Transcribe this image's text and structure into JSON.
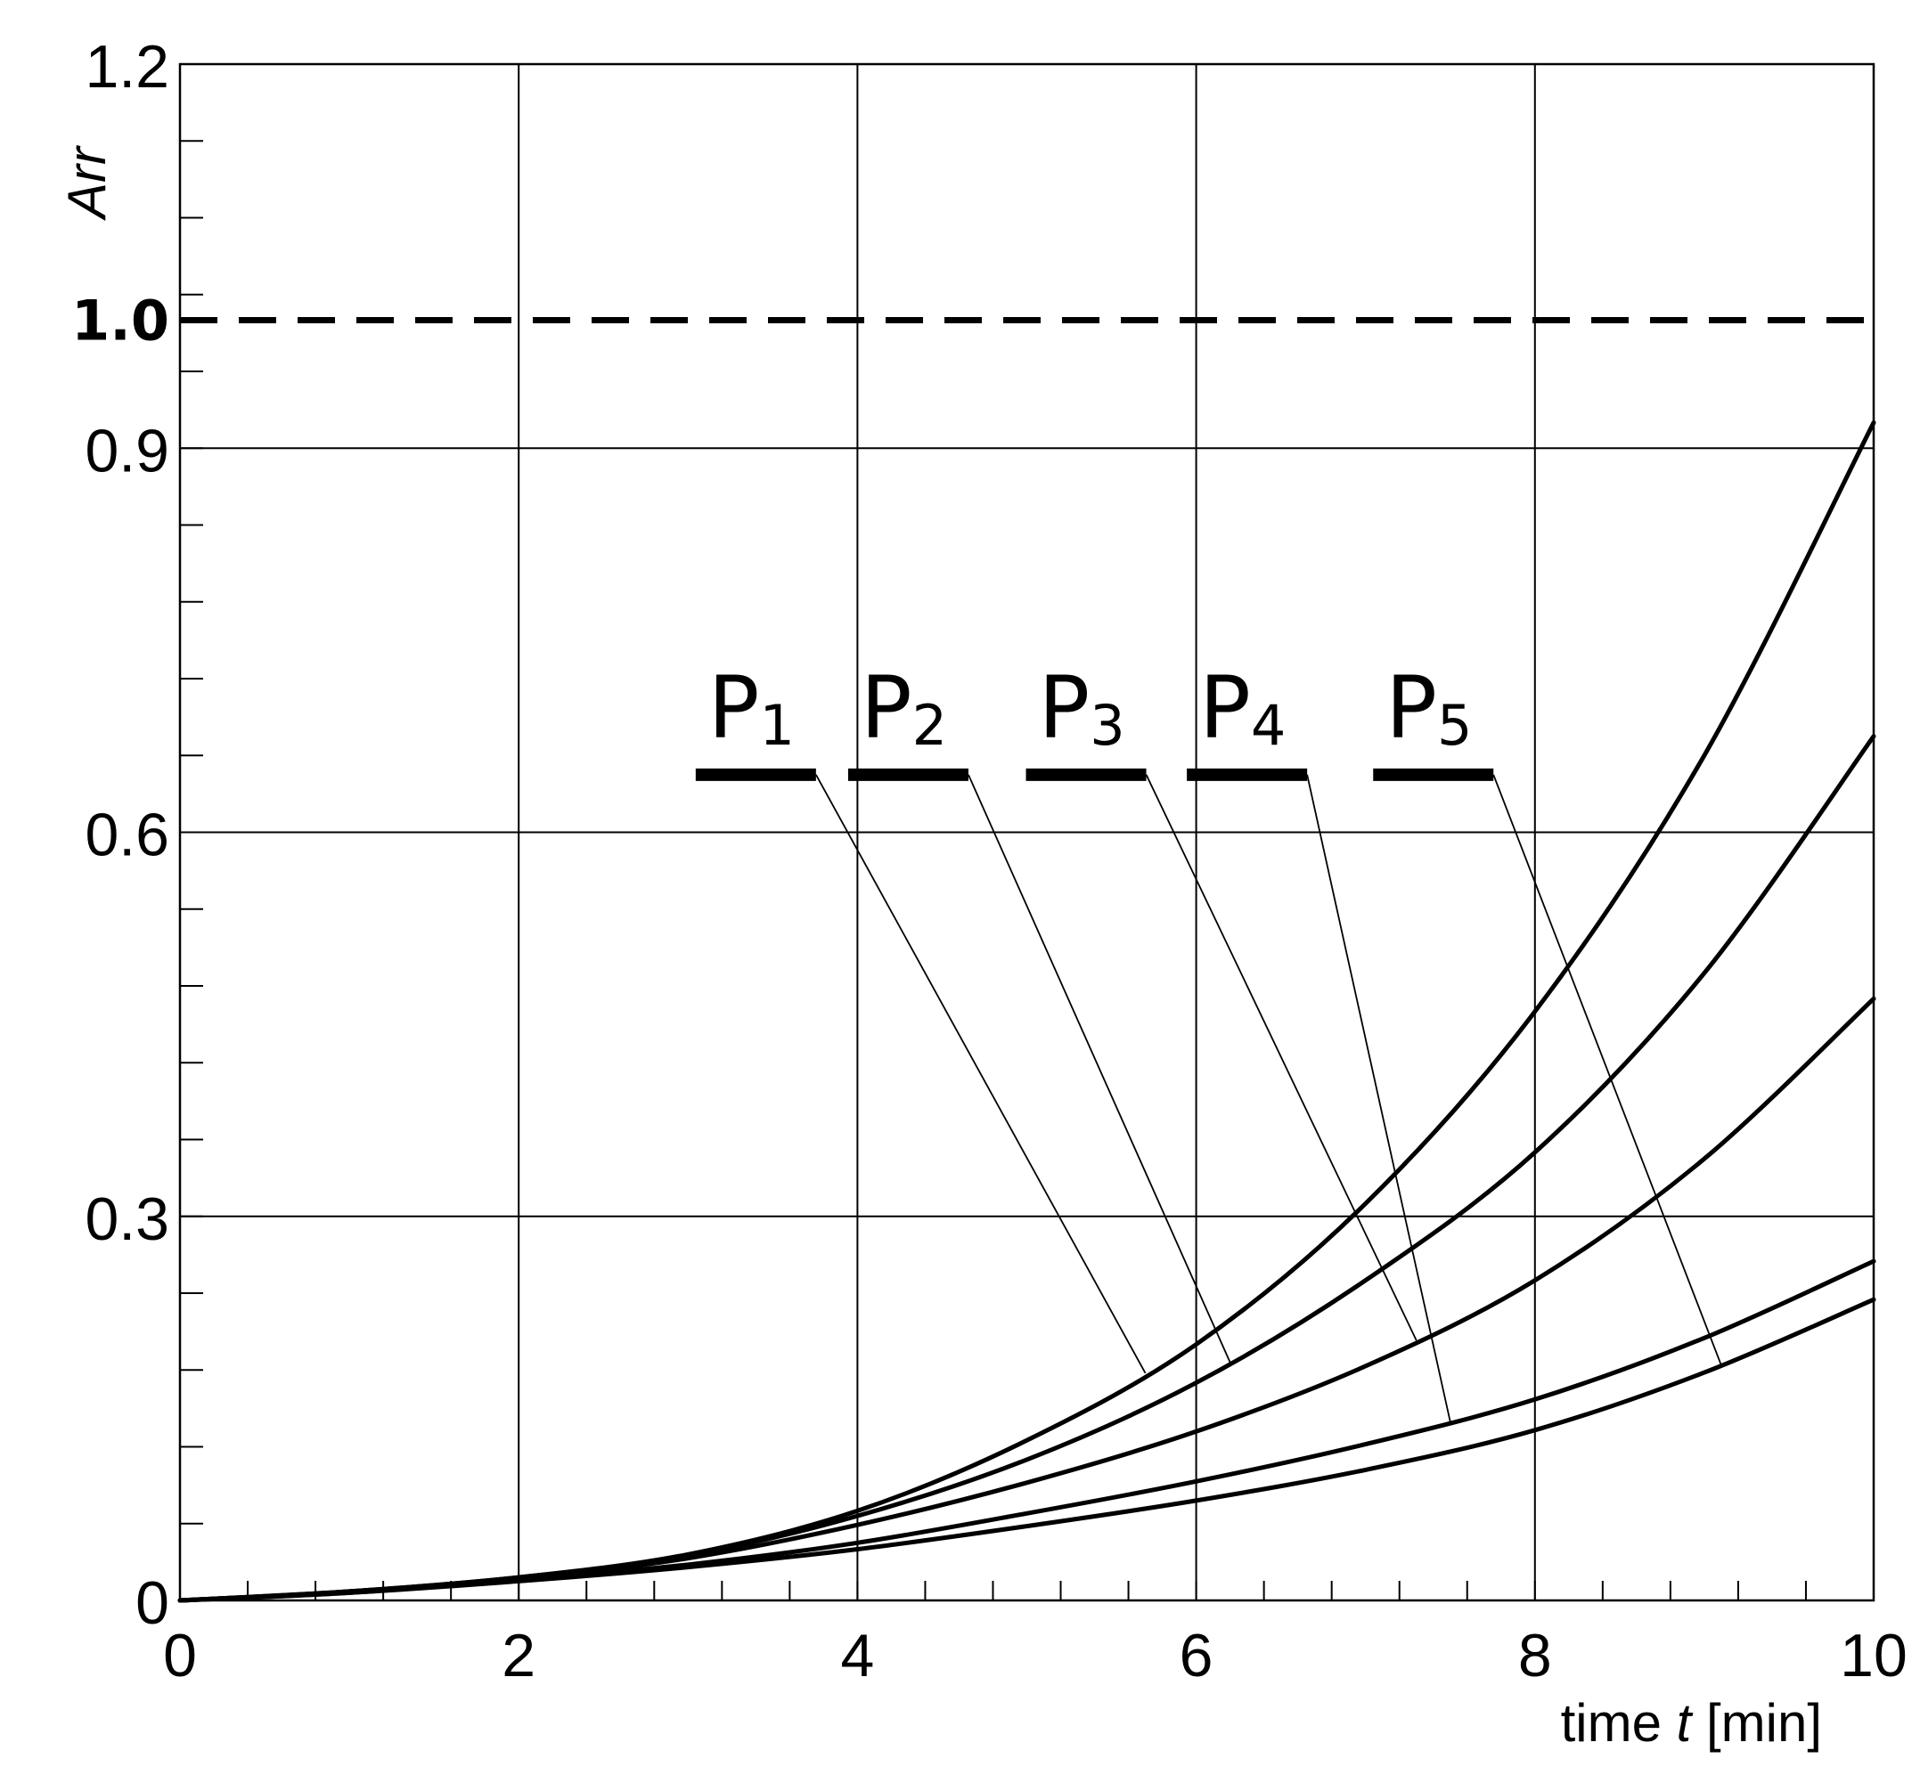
{
  "chart_data": {
    "type": "line",
    "title": "",
    "xlabel": "time",
    "xlabel_var": "t",
    "xlabel_unit": "[min]",
    "ylabel": "Arr",
    "xlim": [
      0,
      10
    ],
    "ylim": [
      0,
      1.2
    ],
    "x_ticks": [
      0,
      2,
      4,
      6,
      8,
      10
    ],
    "x_tick_labels": [
      "0",
      "2",
      "4",
      "6",
      "8",
      "10"
    ],
    "y_ticks": [
      0,
      0.3,
      0.6,
      0.9,
      1.2
    ],
    "y_tick_labels": [
      "0",
      "0.3",
      "0.6",
      "0.9",
      "1.2"
    ],
    "x_minor_step": 0.4,
    "y_minor_step": 0.06,
    "grid": true,
    "reference_line": {
      "y": 1.0,
      "label": "1.0",
      "style": "dashed"
    },
    "x": [
      0,
      1,
      2,
      3,
      4,
      5,
      6,
      7,
      8,
      9,
      10
    ],
    "series": [
      {
        "name": "P1",
        "label_base": "P",
        "label_sub": "1",
        "values": [
          0,
          0.007,
          0.018,
          0.036,
          0.07,
          0.125,
          0.2,
          0.31,
          0.46,
          0.66,
          0.92
        ]
      },
      {
        "name": "P2",
        "label_base": "P",
        "label_sub": "2",
        "values": [
          0,
          0.007,
          0.018,
          0.035,
          0.066,
          0.11,
          0.17,
          0.25,
          0.35,
          0.49,
          0.675
        ]
      },
      {
        "name": "P3",
        "label_base": "P",
        "label_sub": "3",
        "values": [
          0,
          0.007,
          0.017,
          0.033,
          0.059,
          0.092,
          0.132,
          0.183,
          0.25,
          0.345,
          0.47
        ]
      },
      {
        "name": "P4",
        "label_base": "P",
        "label_sub": "4",
        "values": [
          0,
          0.006,
          0.016,
          0.028,
          0.045,
          0.068,
          0.093,
          0.122,
          0.157,
          0.205,
          0.265
        ]
      },
      {
        "name": "P5",
        "label_base": "P",
        "label_sub": "5",
        "values": [
          0,
          0.006,
          0.015,
          0.026,
          0.04,
          0.058,
          0.078,
          0.102,
          0.133,
          0.178,
          0.235
        ]
      }
    ],
    "label_leaders": [
      {
        "series": "P1",
        "label_x": 3.4,
        "label_y": 0.645,
        "curve_x": 5.7
      },
      {
        "series": "P2",
        "label_x": 4.3,
        "label_y": 0.645,
        "curve_x": 6.2
      },
      {
        "series": "P3",
        "label_x": 5.35,
        "label_y": 0.645,
        "curve_x": 7.3
      },
      {
        "series": "P4",
        "label_x": 6.3,
        "label_y": 0.645,
        "curve_x": 7.5
      },
      {
        "series": "P5",
        "label_x": 7.4,
        "label_y": 0.645,
        "curve_x": 9.1
      }
    ],
    "line_color": "#000000",
    "grid_color": "#000000"
  }
}
